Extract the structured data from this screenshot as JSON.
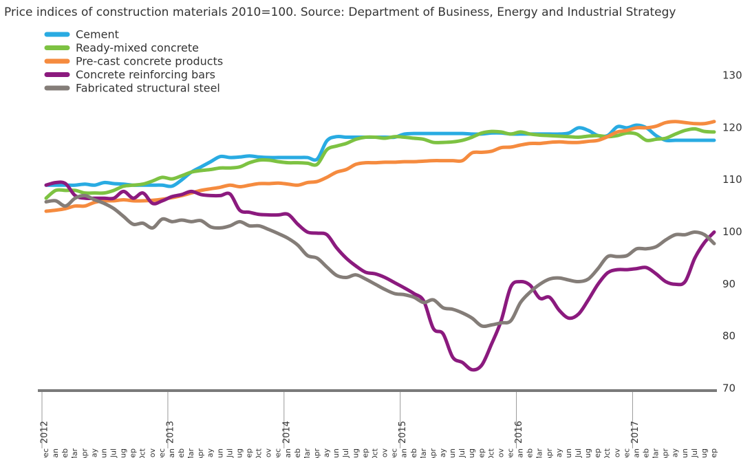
{
  "chart_data": {
    "type": "line",
    "title": "Price indices of construction materials 2010=100.  Source: Department of Business, Energy and Industrial Strategy",
    "categories": [
      "Dec",
      "Jan",
      "Feb",
      "Mar",
      "Apr",
      "May",
      "Jun",
      "Jul",
      "Aug",
      "Sep",
      "Oct",
      "Nov",
      "Dec",
      "Jan",
      "Feb",
      "Mar",
      "Apr",
      "May",
      "Jun",
      "Jul",
      "Aug",
      "Sep",
      "Oct",
      "Nov",
      "Dec",
      "Jan",
      "Feb",
      "Mar",
      "Apr",
      "May",
      "Jun",
      "Jul",
      "Aug",
      "Sep",
      "Oct",
      "Nov",
      "Dec",
      "Jan",
      "Feb",
      "Mar",
      "Apr",
      "May",
      "Jun",
      "Jul",
      "Aug",
      "Sep",
      "Oct",
      "Nov",
      "Dec",
      "Jan",
      "Feb",
      "Mar",
      "Apr",
      "May",
      "Jun",
      "Jul",
      "Aug",
      "Sep",
      "Oct",
      "Nov",
      "Dec",
      "Jan",
      "Feb",
      "Mar",
      "Apr",
      "May",
      "Jun",
      "Jul",
      "Aug",
      "Sep"
    ],
    "years": [
      "2012",
      "2013",
      "2014",
      "2015",
      "2016",
      "2017"
    ],
    "ylim": [
      70,
      130
    ],
    "yticks": [
      70,
      80,
      90,
      100,
      110,
      120,
      130
    ],
    "y_axis_side": "right",
    "grid": false,
    "legend": "top-left",
    "series": [
      {
        "name": "Cement",
        "color": "#29abe2",
        "values": [
          109,
          109,
          109,
          109,
          109.2,
          109,
          109.5,
          109.3,
          109.2,
          109,
          109,
          109,
          109,
          108.8,
          110,
          111.5,
          112.5,
          113.5,
          114.5,
          114.3,
          114.4,
          114.6,
          114.4,
          114.3,
          114.3,
          114.3,
          114.3,
          114.3,
          114,
          117.5,
          118.3,
          118.2,
          118.2,
          118.2,
          118.2,
          118.2,
          118.2,
          118.8,
          118.9,
          118.9,
          118.9,
          118.9,
          118.9,
          118.9,
          118.8,
          118.8,
          119,
          119,
          118.8,
          118.8,
          118.8,
          118.8,
          118.8,
          118.8,
          119,
          120,
          119.5,
          118.5,
          118.5,
          120.2,
          120,
          120.5,
          120,
          118.5,
          117.6,
          117.6,
          117.6,
          117.6,
          117.6,
          117.6
        ]
      },
      {
        "name": "Ready-mixed concrete",
        "color": "#7dc242",
        "values": [
          106.5,
          108,
          108,
          108,
          107.5,
          107.5,
          107.5,
          108,
          108.8,
          109,
          109.2,
          109.8,
          110.5,
          110.2,
          110.8,
          111.5,
          111.8,
          112,
          112.3,
          112.3,
          112.5,
          113.3,
          113.8,
          113.8,
          113.5,
          113.3,
          113.3,
          113.2,
          113,
          115.8,
          116.5,
          117,
          117.8,
          118.2,
          118.2,
          118,
          118.3,
          118.2,
          118,
          117.8,
          117.2,
          117.2,
          117.3,
          117.6,
          118.2,
          119,
          119.3,
          119.2,
          118.8,
          119.2,
          118.8,
          118.6,
          118.5,
          118.4,
          118.3,
          118.2,
          118.4,
          118.5,
          118.3,
          118.5,
          119,
          118.8,
          117.6,
          117.8,
          118,
          118.8,
          119.5,
          119.8,
          119.3,
          119.2
        ]
      },
      {
        "name": "Pre-cast concrete products",
        "color": "#f58b3f",
        "values": [
          104,
          104.2,
          104.5,
          105,
          105,
          105.7,
          106,
          106,
          106.2,
          106,
          106,
          106.1,
          106.3,
          106.6,
          107,
          107.5,
          108,
          108.3,
          108.6,
          109,
          108.7,
          109,
          109.3,
          109.3,
          109.4,
          109.2,
          109,
          109.5,
          109.7,
          110.5,
          111.5,
          112,
          113,
          113.3,
          113.3,
          113.4,
          113.4,
          113.5,
          113.5,
          113.6,
          113.7,
          113.7,
          113.7,
          113.7,
          115.2,
          115.3,
          115.5,
          116.2,
          116.3,
          116.7,
          117,
          117,
          117.2,
          117.3,
          117.2,
          117.2,
          117.4,
          117.6,
          118.3,
          119.2,
          119.5,
          120,
          120,
          120.3,
          121,
          121.2,
          121,
          120.8,
          120.8,
          121.2
        ]
      },
      {
        "name": "Concrete reinforcing bars",
        "color": "#8b1a7e",
        "values": [
          109,
          109.5,
          109.3,
          107,
          106.5,
          106.5,
          106.5,
          106.5,
          107.8,
          106.5,
          107.5,
          105.5,
          106,
          106.8,
          107.2,
          107.8,
          107.2,
          107,
          107,
          107.3,
          104.2,
          103.8,
          103.4,
          103.3,
          103.3,
          103.4,
          101.5,
          100,
          99.8,
          99.5,
          97,
          95,
          93.5,
          92.3,
          92,
          91.3,
          90.3,
          89.3,
          88.2,
          86.8,
          81.5,
          80.5,
          76,
          75,
          73.6,
          74.5,
          78.5,
          83,
          89.5,
          90.5,
          89.8,
          87.3,
          87.5,
          85,
          83.5,
          84.3,
          87,
          90,
          92.2,
          92.8,
          92.8,
          93,
          93.2,
          92,
          90.5,
          90,
          90.5,
          95,
          98,
          100
        ]
      },
      {
        "name": "Fabricated structural steel",
        "color": "#847d78",
        "values": [
          105.8,
          106,
          105,
          106.5,
          107,
          106.2,
          105.5,
          104.5,
          103,
          101.5,
          101.7,
          100.8,
          102.5,
          102,
          102.3,
          102,
          102.2,
          101,
          100.8,
          101.2,
          102,
          101.2,
          101.2,
          100.5,
          99.7,
          98.8,
          97.5,
          95.5,
          95,
          93.3,
          91.7,
          91.3,
          91.8,
          91,
          90,
          89,
          88.2,
          88,
          87.5,
          86.5,
          87,
          85.5,
          85.2,
          84.5,
          83.5,
          82,
          82.2,
          82.6,
          83,
          86.5,
          88.5,
          90,
          91,
          91.2,
          90.8,
          90.5,
          91,
          93,
          95.3,
          95.3,
          95.5,
          96.8,
          96.8,
          97.2,
          98.5,
          99.5,
          99.5,
          100,
          99.5,
          97.8
        ]
      }
    ]
  }
}
